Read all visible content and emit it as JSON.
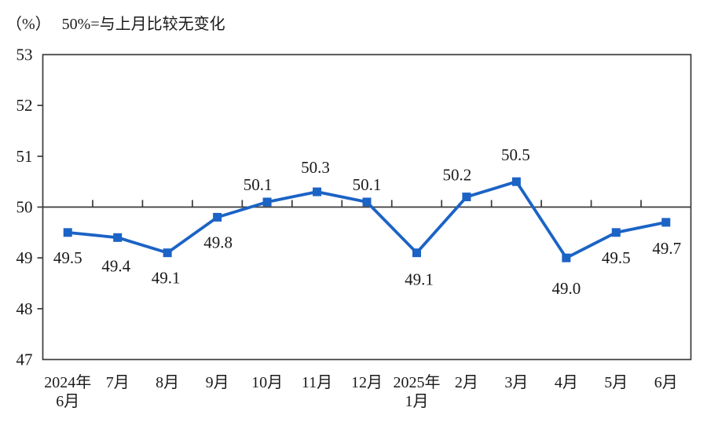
{
  "header": {
    "unit_label": "（%）",
    "subtitle": "50%=与上月比较无变化"
  },
  "chart_data": {
    "type": "line",
    "title": "50%=与上月比较无变化",
    "unit_label": "（%）",
    "categories": [
      [
        "2024年",
        "6月"
      ],
      [
        "7月"
      ],
      [
        "8月"
      ],
      [
        "9月"
      ],
      [
        "10月"
      ],
      [
        "11月"
      ],
      [
        "12月"
      ],
      [
        "2025年",
        "1月"
      ],
      [
        "2月"
      ],
      [
        "3月"
      ],
      [
        "4月"
      ],
      [
        "5月"
      ],
      [
        "6月"
      ]
    ],
    "values": [
      49.5,
      49.4,
      49.1,
      49.8,
      50.1,
      50.3,
      50.1,
      49.1,
      50.2,
      50.5,
      49.0,
      49.5,
      49.7
    ],
    "data_labels": [
      "49.5",
      "49.4",
      "49.1",
      "49.8",
      "50.1",
      "50.3",
      "50.1",
      "49.1",
      "50.2",
      "50.5",
      "49.0",
      "49.5",
      "49.7"
    ],
    "ylim": [
      47,
      53
    ],
    "ytick_step": 1,
    "yticks": [
      47,
      48,
      49,
      50,
      51,
      52,
      53
    ],
    "reference_line": 50,
    "grid": "off",
    "legend": "none",
    "line_color": "#1b63c5",
    "marker": "square",
    "axis_color": "#3a3a3a",
    "text_color": "#1a1a1a"
  }
}
